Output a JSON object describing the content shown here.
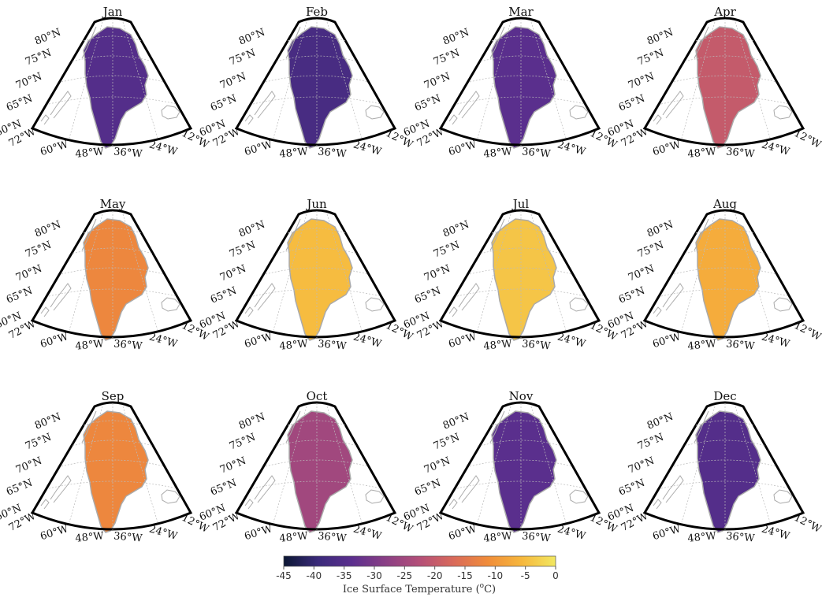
{
  "panels": [
    {
      "month": "Jan",
      "temp": -35
    },
    {
      "month": "Feb",
      "temp": -37
    },
    {
      "month": "Mar",
      "temp": -34
    },
    {
      "month": "Apr",
      "temp": -20
    },
    {
      "month": "May",
      "temp": -12
    },
    {
      "month": "Jun",
      "temp": -5
    },
    {
      "month": "Jul",
      "temp": -4
    },
    {
      "month": "Aug",
      "temp": -7
    },
    {
      "month": "Sep",
      "temp": -12
    },
    {
      "month": "Oct",
      "temp": -25
    },
    {
      "month": "Nov",
      "temp": -34
    },
    {
      "month": "Dec",
      "temp": -35
    }
  ],
  "lat_labels": [
    "80°N",
    "75°N",
    "70°N",
    "65°N",
    "60°N"
  ],
  "lon_labels": [
    "72°W",
    "60°W",
    "48°W",
    "36°W",
    "24°W",
    "12°W"
  ],
  "colorbar": {
    "ticks": [
      "-45",
      "-40",
      "-35",
      "-30",
      "-25",
      "-20",
      "-15",
      "-10",
      "-5",
      "0"
    ],
    "min": -45,
    "max": 0,
    "label": "Ice Surface Temperature (",
    "label_sup": "o",
    "label_end": "C)",
    "colors": [
      "#0b1733",
      "#3a2a7a",
      "#5b2f8e",
      "#8a3f85",
      "#b44f78",
      "#d96a5a",
      "#f08c3a",
      "#f6b73c",
      "#f2e861"
    ]
  }
}
